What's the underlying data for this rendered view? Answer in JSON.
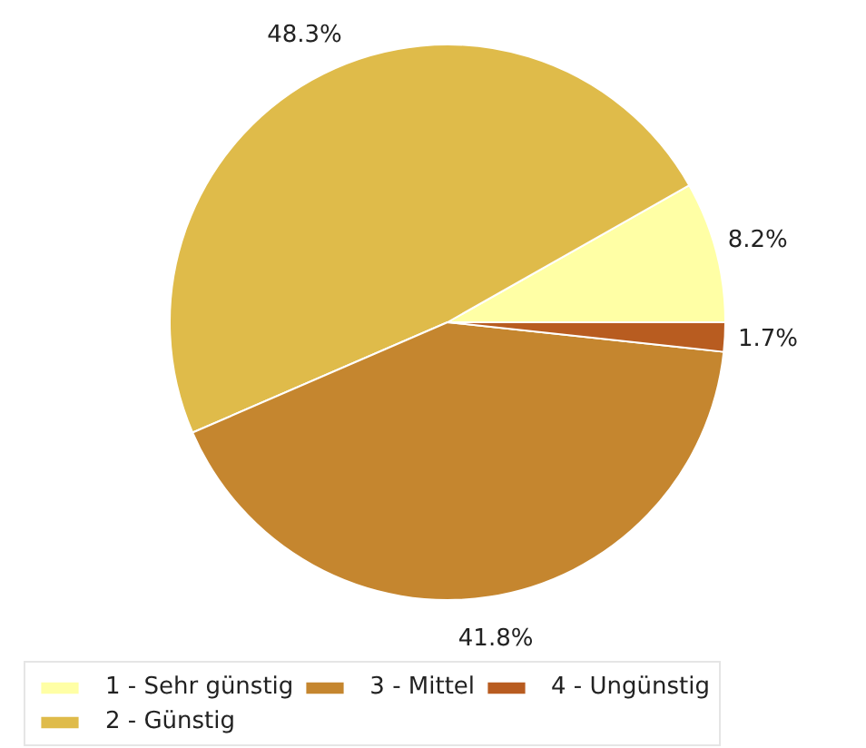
{
  "chart_data": {
    "type": "pie",
    "categories": [
      "1 - Sehr günstig",
      "2 - Günstig",
      "3 - Mittel",
      "4 - Ungünstig"
    ],
    "values": [
      8.2,
      48.3,
      41.8,
      1.7
    ],
    "colors": [
      "#ffffa5",
      "#dfbb4a",
      "#c5862f",
      "#b85c20"
    ],
    "value_labels": [
      "8.2%",
      "48.3%",
      "41.8%",
      "1.7%"
    ],
    "legend": "bottom"
  }
}
